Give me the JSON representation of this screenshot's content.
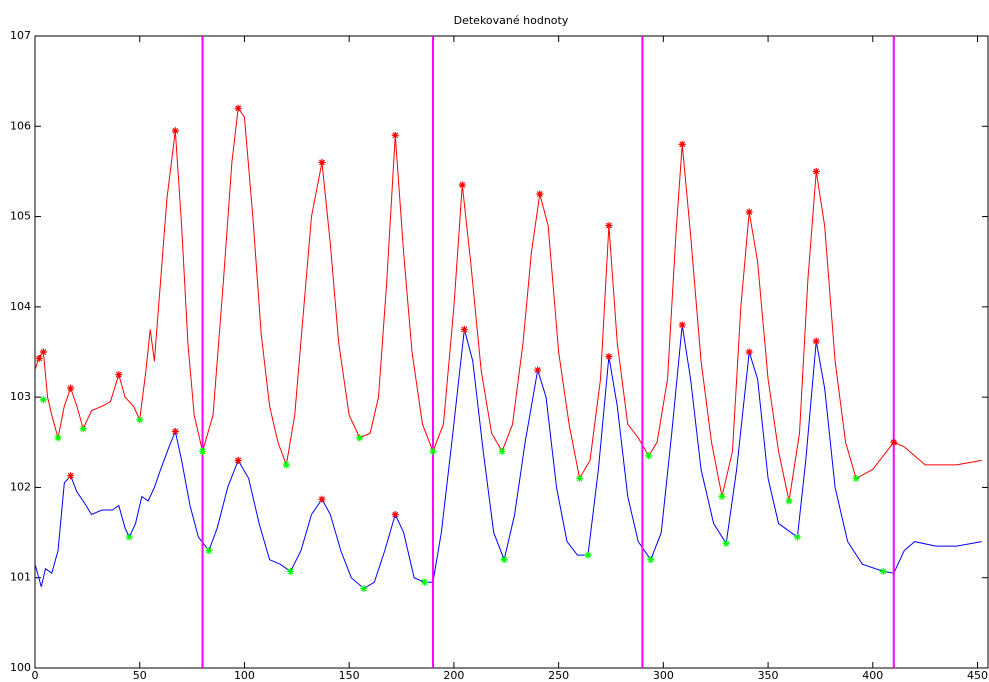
{
  "chart_data": {
    "type": "line",
    "title": "Detekované hodnoty",
    "xlim": [
      0,
      455
    ],
    "ylim": [
      100,
      107
    ],
    "xticks": [
      0,
      50,
      100,
      150,
      200,
      250,
      300,
      350,
      400,
      450
    ],
    "yticks": [
      100,
      101,
      102,
      103,
      104,
      105,
      106,
      107
    ],
    "series": [
      {
        "color": "#ff0000",
        "x": [
          0,
          2,
          4,
          6,
          8,
          11,
          14,
          17,
          20,
          23,
          27,
          32,
          36,
          40,
          43,
          47,
          50,
          53,
          55,
          57,
          60,
          63,
          67,
          70,
          73,
          76,
          80,
          85,
          90,
          94,
          97,
          100,
          104,
          108,
          112,
          116,
          120,
          124,
          128,
          132,
          137,
          141,
          145,
          150,
          155,
          160,
          164,
          168,
          172,
          176,
          180,
          185,
          190,
          195,
          200,
          204,
          208,
          213,
          218,
          223,
          228,
          233,
          237,
          241,
          245,
          250,
          255,
          260,
          265,
          270,
          274,
          278,
          283,
          288,
          293,
          297,
          302,
          306,
          309,
          313,
          318,
          323,
          328,
          333,
          337,
          341,
          345,
          350,
          355,
          360,
          365,
          369,
          373,
          377,
          382,
          387,
          392,
          396,
          400,
          405,
          410,
          415,
          420,
          425,
          430,
          440,
          452
        ],
        "values": [
          103.3,
          103.45,
          103.5,
          103.0,
          102.8,
          102.55,
          102.9,
          103.1,
          102.9,
          102.65,
          102.85,
          102.9,
          102.95,
          103.25,
          103.0,
          102.9,
          102.75,
          103.3,
          103.75,
          103.4,
          104.3,
          105.2,
          105.95,
          104.9,
          103.6,
          102.8,
          102.4,
          102.8,
          104.3,
          105.6,
          106.2,
          106.1,
          105.0,
          103.7,
          102.9,
          102.5,
          102.25,
          102.8,
          103.9,
          105.0,
          105.6,
          104.7,
          103.6,
          102.8,
          102.55,
          102.6,
          103.0,
          104.3,
          105.9,
          104.6,
          103.5,
          102.7,
          102.4,
          102.7,
          104.0,
          105.35,
          104.5,
          103.3,
          102.6,
          102.4,
          102.7,
          103.6,
          104.6,
          105.25,
          104.9,
          103.5,
          102.7,
          102.1,
          102.3,
          103.2,
          104.9,
          103.6,
          102.7,
          102.55,
          102.35,
          102.5,
          103.2,
          104.8,
          105.8,
          104.8,
          103.4,
          102.5,
          101.9,
          102.4,
          104.0,
          105.05,
          104.5,
          103.2,
          102.4,
          101.85,
          102.6,
          104.3,
          105.5,
          104.9,
          103.4,
          102.5,
          102.1,
          102.15,
          102.2,
          102.35,
          102.5,
          102.45,
          102.35,
          102.25,
          102.25,
          102.25,
          102.3
        ]
      },
      {
        "color": "#0000ff",
        "x": [
          0,
          3,
          5,
          8,
          11,
          14,
          17,
          20,
          23,
          27,
          32,
          37,
          40,
          43,
          45,
          48,
          51,
          54,
          57,
          60,
          64,
          67,
          70,
          74,
          78,
          83,
          87,
          92,
          97,
          102,
          107,
          112,
          117,
          122,
          127,
          132,
          137,
          141,
          146,
          151,
          157,
          162,
          167,
          172,
          176,
          181,
          186,
          190,
          194,
          199,
          205,
          209,
          214,
          219,
          224,
          229,
          234,
          240,
          244,
          249,
          254,
          259,
          264,
          269,
          274,
          278,
          283,
          288,
          294,
          299,
          304,
          309,
          313,
          318,
          324,
          330,
          335,
          341,
          345,
          350,
          355,
          364,
          368,
          373,
          377,
          382,
          388,
          395,
          405,
          410,
          415,
          420,
          430,
          440,
          452
        ],
        "values": [
          101.15,
          100.9,
          101.1,
          101.05,
          101.3,
          102.05,
          102.13,
          101.95,
          101.85,
          101.7,
          101.75,
          101.75,
          101.8,
          101.55,
          101.45,
          101.6,
          101.9,
          101.85,
          102.0,
          102.2,
          102.45,
          102.62,
          102.3,
          101.8,
          101.45,
          101.3,
          101.55,
          102.0,
          102.3,
          102.1,
          101.6,
          101.2,
          101.15,
          101.07,
          101.3,
          101.7,
          101.87,
          101.7,
          101.3,
          101.0,
          100.88,
          100.95,
          101.3,
          101.7,
          101.5,
          101.0,
          100.95,
          100.95,
          101.5,
          102.5,
          103.75,
          103.4,
          102.4,
          101.5,
          101.2,
          101.7,
          102.5,
          103.3,
          103.0,
          102.0,
          101.4,
          101.25,
          101.25,
          102.2,
          103.45,
          102.9,
          101.9,
          101.4,
          101.2,
          101.5,
          102.6,
          103.8,
          103.2,
          102.2,
          101.6,
          101.38,
          102.2,
          103.5,
          103.2,
          102.1,
          101.6,
          101.45,
          102.3,
          103.62,
          103.1,
          102.0,
          101.4,
          101.15,
          101.07,
          101.05,
          101.3,
          101.4,
          101.35,
          101.35,
          101.4
        ]
      }
    ],
    "markers": [
      {
        "color": "#ff0000",
        "x": [
          2,
          4,
          17,
          40,
          67,
          97,
          137,
          172,
          204,
          241,
          274,
          309,
          341,
          373,
          410,
          17,
          67,
          97,
          137,
          172,
          205,
          240,
          274,
          309,
          341,
          373
        ],
        "y": [
          103.43,
          103.5,
          103.1,
          103.25,
          105.95,
          106.2,
          105.6,
          105.9,
          105.35,
          105.25,
          104.9,
          105.8,
          105.05,
          105.5,
          102.5,
          102.13,
          102.62,
          102.3,
          101.87,
          101.7,
          103.75,
          103.3,
          103.45,
          103.8,
          103.5,
          103.62
        ]
      },
      {
        "color": "#00ff00",
        "x": [
          4,
          11,
          23,
          50,
          80,
          120,
          155,
          190,
          223,
          260,
          293,
          328,
          360,
          392,
          45,
          83,
          122,
          157,
          186,
          224,
          264,
          294,
          330,
          364,
          405
        ],
        "y": [
          102.97,
          102.55,
          102.65,
          102.75,
          102.4,
          102.25,
          102.55,
          102.4,
          102.4,
          102.1,
          102.35,
          101.9,
          101.85,
          102.1,
          101.45,
          101.3,
          101.07,
          100.88,
          100.95,
          101.2,
          101.25,
          101.2,
          101.38,
          101.45,
          101.07
        ]
      }
    ],
    "vlines": {
      "color": "#ff00ff",
      "x": [
        80,
        190,
        290,
        410
      ]
    }
  }
}
